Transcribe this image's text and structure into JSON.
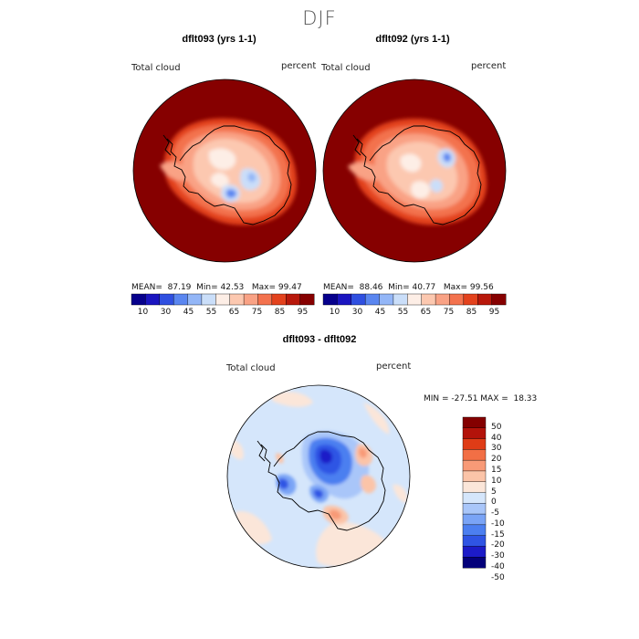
{
  "figure": {
    "season": "DJF",
    "colors": {
      "abs_palette": [
        "#06008c",
        "#1a15c0",
        "#2f4fe0",
        "#5a86f0",
        "#93b6f7",
        "#cadef9",
        "#fdeee6",
        "#fcc8b0",
        "#f9a285",
        "#f3724e",
        "#e3421d",
        "#b8180b",
        "#860000"
      ],
      "diff_palette": [
        "#04007a",
        "#1c1bc8",
        "#2f54e4",
        "#4c7ff0",
        "#7aa4f6",
        "#a9c6f9",
        "#d5e6fb",
        "#fbe6d9",
        "#fbc4a8",
        "#f89a77",
        "#f26f45",
        "#df3c16",
        "#b3130a",
        "#840000"
      ]
    },
    "panels": [
      {
        "title": "dflt093 (yrs 1-1)",
        "variable": "Total cloud",
        "units": "percent",
        "mean_label": "MEAN=",
        "mean": "87.19",
        "min_label": "Min=",
        "min": "42.53",
        "max_label": "Max=",
        "max": "99.47",
        "colorbar_ticks": [
          "10",
          "30",
          "45",
          "55",
          "65",
          "75",
          "85",
          "95"
        ]
      },
      {
        "title": "dflt092 (yrs 1-1)",
        "variable": "Total cloud",
        "units": "percent",
        "mean_label": "MEAN=",
        "mean": "88.46",
        "min_label": "Min=",
        "min": "40.77",
        "max_label": "Max=",
        "max": "99.56",
        "colorbar_ticks": [
          "10",
          "30",
          "45",
          "55",
          "65",
          "75",
          "85",
          "95"
        ]
      }
    ],
    "difference": {
      "title": "dflt093 - dflt092",
      "variable": "Total cloud",
      "units": "percent",
      "min_max_text": "MIN = -27.51 MAX =  18.33",
      "colorbar_ticks": [
        "50",
        "40",
        "30",
        "20",
        "15",
        "10",
        "5",
        "0",
        "-5",
        "-10",
        "-15",
        "-20",
        "-30",
        "-40",
        "-50"
      ]
    }
  }
}
